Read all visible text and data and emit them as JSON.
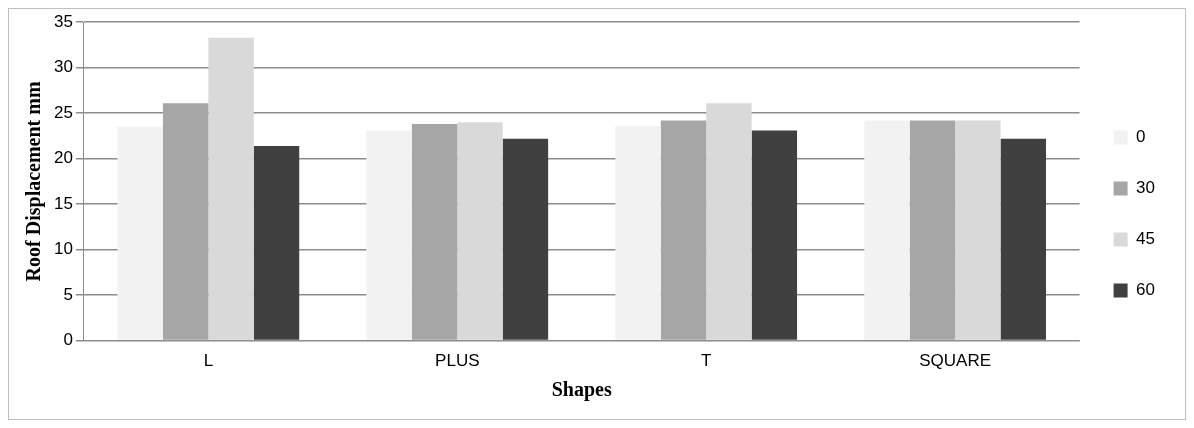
{
  "chart_data": {
    "type": "bar",
    "xlabel": "Shapes",
    "ylabel": "Roof Displacement mm",
    "categories": [
      "L",
      "PLUS",
      "T",
      "SQUARE"
    ],
    "series": [
      {
        "name": "0",
        "color": "#f2f2f2",
        "values": [
          23.5,
          23.1,
          23.6,
          24.2
        ]
      },
      {
        "name": "30",
        "color": "#a6a6a6",
        "values": [
          26.1,
          23.8,
          24.2,
          24.2
        ]
      },
      {
        "name": "45",
        "color": "#d9d9d9",
        "values": [
          33.3,
          24.0,
          26.1,
          24.2
        ]
      },
      {
        "name": "60",
        "color": "#404040",
        "values": [
          21.4,
          22.2,
          23.1,
          22.2
        ]
      }
    ],
    "ylim": [
      0,
      35
    ],
    "yticks": [
      0,
      5,
      10,
      15,
      20,
      25,
      30,
      35
    ],
    "grid": "y",
    "legend": "right"
  }
}
